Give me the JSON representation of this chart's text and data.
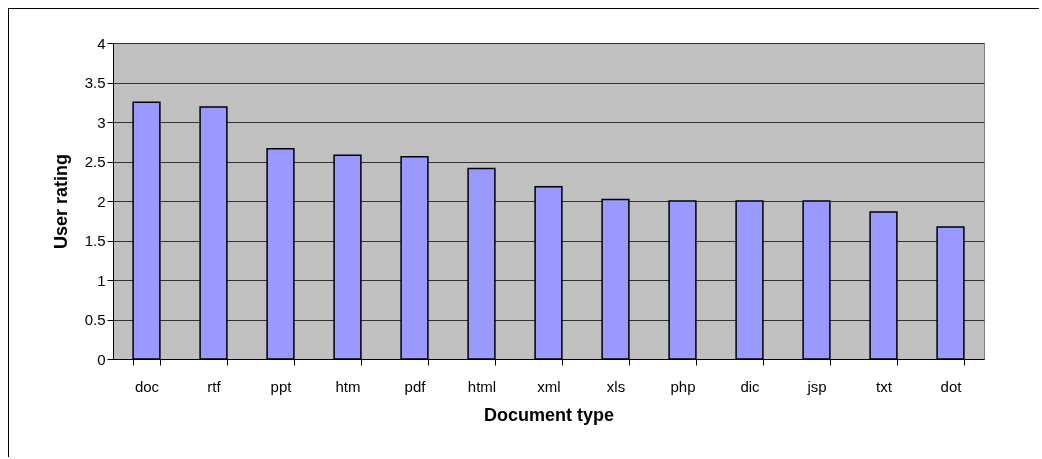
{
  "chart_data": {
    "type": "bar",
    "xlabel": "Document type",
    "ylabel": "User rating",
    "categories": [
      "doc",
      "rtf",
      "ppt",
      "htm",
      "pdf",
      "html",
      "xml",
      "xls",
      "php",
      "dic",
      "jsp",
      "txt",
      "dot"
    ],
    "values": [
      3.25,
      3.19,
      2.66,
      2.58,
      2.56,
      2.41,
      2.18,
      2.02,
      2.0,
      2.0,
      2.0,
      1.86,
      1.67
    ],
    "color": "#9999ff",
    "ylim": [
      0,
      4
    ],
    "yticks": [
      0,
      0.5,
      1,
      1.5,
      2,
      2.5,
      3,
      3.5,
      4
    ],
    "grid": "y"
  }
}
